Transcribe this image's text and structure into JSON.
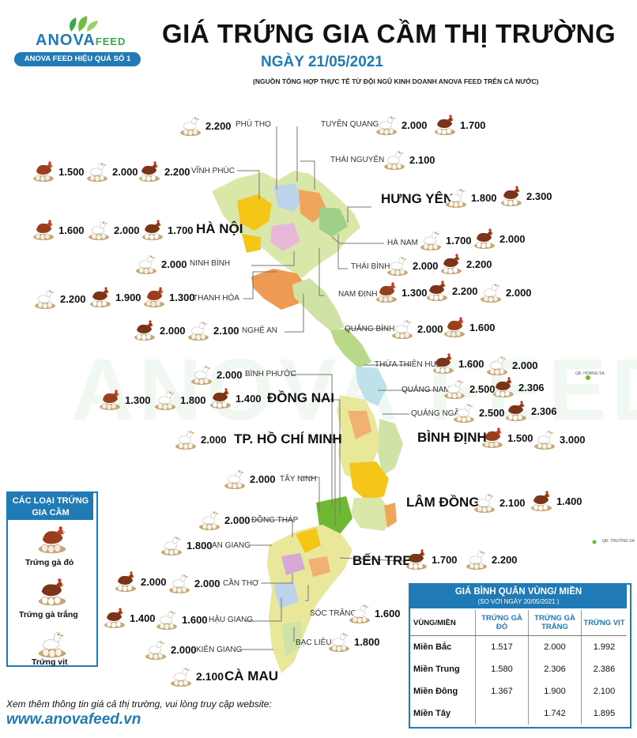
{
  "header": {
    "logo_main": "ANOVA",
    "logo_sub": "FEED",
    "logo_slogan": "ANOVA FEED HIỆU QUẢ SỐ 1",
    "title": "GIÁ TRỨNG GIA CẦM THỊ TRƯỜNG",
    "date": "NGÀY 21/05/2021",
    "source": "(NGUỒN TỔNG HỢP THỰC TẾ TỪ ĐỘI NGŨ KINH DOANH ANOVA FEED TRÊN CẢ NƯỚC)"
  },
  "watermark": "ANOVA FEED",
  "islands": {
    "hoang_sa": "QĐ. HOÀNG SA",
    "truong_sa": "QĐ. TRƯỜNG SA"
  },
  "colors": {
    "brand_blue": "#1f7ab5",
    "brand_green": "#3aa84a",
    "egg_red": "#8a3a1a",
    "egg_white": "#e8e2cf"
  },
  "chart_data": {
    "type": "table",
    "title": "GIÁ TRỨNG GIA CẦM THỊ TRƯỜNG",
    "egg_types": {
      "red": "Trứng gà đỏ",
      "white": "Trứng gà trắng",
      "duck": "Trứng vịt"
    },
    "provinces": [
      {
        "name": "PHÚ THỌ",
        "prices": [
          {
            "type": "duck",
            "value": "2.200"
          }
        ]
      },
      {
        "name": "TUYÊN QUANG",
        "prices": [
          {
            "type": "duck",
            "value": "2.000"
          },
          {
            "type": "white",
            "value": "1.700"
          }
        ]
      },
      {
        "name": "VĨNH PHÚC",
        "prices": [
          {
            "type": "red",
            "value": "1.500"
          },
          {
            "type": "duck",
            "value": "2.000"
          },
          {
            "type": "white",
            "value": "2.200"
          }
        ]
      },
      {
        "name": "THÁI NGUYÊN",
        "prices": [
          {
            "type": "duck",
            "value": "2.100"
          }
        ]
      },
      {
        "name": "HƯNG YÊN",
        "prices": [
          {
            "type": "duck",
            "value": "1.800"
          },
          {
            "type": "white",
            "value": "2.300"
          }
        ]
      },
      {
        "name": "HÀ NỘI",
        "prices": [
          {
            "type": "red",
            "value": "1.600"
          },
          {
            "type": "duck",
            "value": "2.000"
          },
          {
            "type": "white",
            "value": "1.700"
          }
        ]
      },
      {
        "name": "HÀ NAM",
        "prices": [
          {
            "type": "duck",
            "value": "1.700"
          },
          {
            "type": "white",
            "value": "2.000"
          }
        ]
      },
      {
        "name": "NINH BÌNH",
        "prices": [
          {
            "type": "duck",
            "value": "2.000"
          }
        ]
      },
      {
        "name": "THÁI BÌNH",
        "prices": [
          {
            "type": "duck",
            "value": "2.000"
          },
          {
            "type": "white",
            "value": "2.200"
          }
        ]
      },
      {
        "name": "THANH HÓA",
        "prices": [
          {
            "type": "duck",
            "value": "2.200"
          },
          {
            "type": "white",
            "value": "1.900"
          },
          {
            "type": "red",
            "value": "1.300"
          }
        ]
      },
      {
        "name": "NAM ĐỊNH",
        "prices": [
          {
            "type": "red",
            "value": "1.300"
          },
          {
            "type": "white",
            "value": "2.200"
          },
          {
            "type": "duck",
            "value": "2.000"
          }
        ]
      },
      {
        "name": "NGHỆ AN",
        "prices": [
          {
            "type": "white",
            "value": "2.000"
          },
          {
            "type": "duck",
            "value": "2.100"
          }
        ]
      },
      {
        "name": "QUẢNG BÌNH",
        "prices": [
          {
            "type": "duck",
            "value": "2.000"
          },
          {
            "type": "red",
            "value": "1.600"
          }
        ]
      },
      {
        "name": "THỪA THIÊN HUẾ",
        "prices": [
          {
            "type": "white",
            "value": "1.600"
          },
          {
            "type": "duck",
            "value": "2.000"
          }
        ]
      },
      {
        "name": "BÌNH PHƯỚC",
        "prices": [
          {
            "type": "duck",
            "value": "2.000"
          }
        ]
      },
      {
        "name": "QUẢNG NAM",
        "prices": [
          {
            "type": "duck",
            "value": "2.500"
          },
          {
            "type": "white",
            "value": "2.306"
          }
        ]
      },
      {
        "name": "ĐỒNG NAI",
        "prices": [
          {
            "type": "red",
            "value": "1.300"
          },
          {
            "type": "duck",
            "value": "1.800"
          },
          {
            "type": "white",
            "value": "1.400"
          }
        ]
      },
      {
        "name": "QUẢNG NGÃI",
        "prices": [
          {
            "type": "duck",
            "value": "2.500"
          },
          {
            "type": "white",
            "value": "2.306"
          }
        ]
      },
      {
        "name": "TP. HỒ CHÍ MINH",
        "prices": [
          {
            "type": "duck",
            "value": "2.000"
          }
        ]
      },
      {
        "name": "BÌNH ĐỊNH",
        "prices": [
          {
            "type": "red",
            "value": "1.500"
          },
          {
            "type": "duck",
            "value": "3.000"
          }
        ]
      },
      {
        "name": "TÂY NINH",
        "prices": [
          {
            "type": "duck",
            "value": "2.000"
          }
        ]
      },
      {
        "name": "LÂM ĐỒNG",
        "prices": [
          {
            "type": "duck",
            "value": "2.100"
          },
          {
            "type": "white",
            "value": "1.400"
          }
        ]
      },
      {
        "name": "ĐỒNG THÁP",
        "prices": [
          {
            "type": "duck",
            "value": "2.000"
          }
        ]
      },
      {
        "name": "AN GIANG",
        "prices": [
          {
            "type": "duck",
            "value": "1.800"
          }
        ]
      },
      {
        "name": "BẾN TRE",
        "prices": [
          {
            "type": "white",
            "value": "1.700"
          },
          {
            "type": "duck",
            "value": "2.200"
          }
        ]
      },
      {
        "name": "CẦN THƠ",
        "prices": [
          {
            "type": "white",
            "value": "2.000"
          },
          {
            "type": "duck",
            "value": "2.000"
          }
        ]
      },
      {
        "name": "HẬU GIANG",
        "prices": [
          {
            "type": "white",
            "value": "1.400"
          },
          {
            "type": "duck",
            "value": "1.600"
          }
        ]
      },
      {
        "name": "SÓC TRĂNG",
        "prices": [
          {
            "type": "duck",
            "value": "1.600"
          }
        ]
      },
      {
        "name": "KIÊN GIANG",
        "prices": [
          {
            "type": "duck",
            "value": "2.000"
          }
        ]
      },
      {
        "name": "BẠC LIÊU",
        "prices": [
          {
            "type": "duck",
            "value": "1.800"
          }
        ]
      },
      {
        "name": "CÀ MAU",
        "prices": [
          {
            "type": "duck",
            "value": "2.100"
          }
        ]
      }
    ],
    "regional_average": {
      "title": "GIÁ BÌNH QUÂN VÙNG/ MIỀN",
      "subtitle": "(SO VỚI NGÀY  20/05/2021    )",
      "columns": [
        "VÙNG/MIỀN",
        "TRỨNG GÀ ĐỎ",
        "TRỨNG GÀ TRẮNG",
        "TRỨNG VỊT"
      ],
      "rows": [
        [
          "Miền Bắc",
          "1.517",
          "2.000",
          "1.992"
        ],
        [
          "Miền Trung",
          "1.580",
          "2.306",
          "2.386"
        ],
        [
          "Miền Đông",
          "1.367",
          "1.900",
          "2.100"
        ],
        [
          "Miền Tây",
          "",
          "1.742",
          "1.895"
        ]
      ]
    }
  },
  "legend": {
    "title": "CÁC LOẠI TRỨNG GIA CẦM",
    "items": [
      "Trứng gà đỏ",
      "Trứng gà trắng",
      "Trứng vịt"
    ]
  },
  "footer": {
    "note": "Xem thêm thông tin giá cả thị trường, vui lòng truy cập website:",
    "website": "www.anovafeed.vn"
  }
}
